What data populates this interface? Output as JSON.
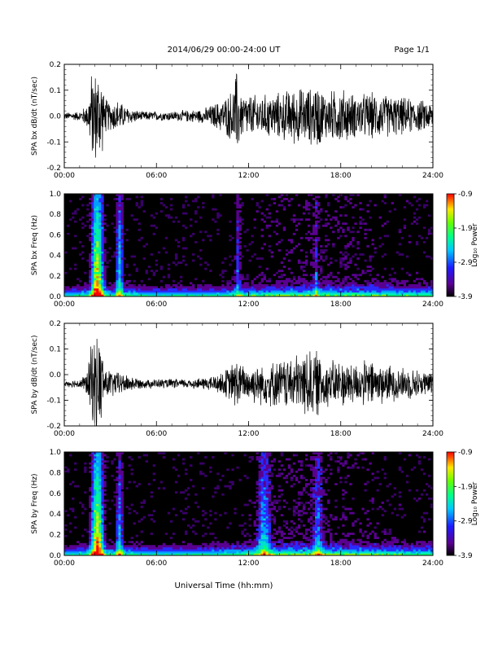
{
  "header": {
    "title": "2014/06/29  00:00-24:00 UT",
    "page": "Page 1/1"
  },
  "xlabel": "Universal Time (hh:mm)",
  "chart_data": [
    {
      "type": "line",
      "ylabel": "SPA bx dB/dt (nT/sec)",
      "xlim": [
        0,
        24
      ],
      "ylim": [
        -0.2,
        0.2
      ],
      "yticks": [
        "0.2",
        "0.1",
        "0.0",
        "-0.1",
        "-0.2"
      ],
      "xticks": [
        "00:00",
        "06:00",
        "12:00",
        "18:00",
        "24:00"
      ],
      "envelope": {
        "x_hours": [
          0,
          1,
          1.5,
          1.8,
          2.0,
          2.2,
          2.4,
          2.6,
          3.0,
          3.5,
          4.0,
          5.0,
          6.0,
          7.0,
          8.0,
          9.0,
          10.0,
          10.5,
          11.0,
          11.2,
          11.5,
          12.0,
          13.0,
          14.0,
          15.0,
          16.0,
          16.5,
          17.0,
          18.0,
          19.0,
          20.0,
          21.0,
          22.0,
          23.0,
          24.0
        ],
        "amplitude": [
          0.015,
          0.02,
          0.05,
          0.2,
          0.2,
          0.2,
          0.2,
          0.08,
          0.06,
          0.07,
          0.04,
          0.02,
          0.02,
          0.02,
          0.025,
          0.03,
          0.06,
          0.08,
          0.12,
          0.2,
          0.1,
          0.09,
          0.09,
          0.1,
          0.12,
          0.12,
          0.14,
          0.1,
          0.12,
          0.09,
          0.1,
          0.09,
          0.08,
          0.07,
          0.06
        ]
      }
    },
    {
      "type": "heatmap",
      "ylabel": "SPA bx Freq (Hz)",
      "xlim": [
        0,
        24
      ],
      "ylim": [
        0.0,
        1.0
      ],
      "yticks": [
        "1.0",
        "0.8",
        "0.6",
        "0.4",
        "0.2",
        "0.0"
      ],
      "xticks": [
        "00:00",
        "06:00",
        "12:00",
        "18:00",
        "24:00"
      ],
      "colorbar": {
        "label": "Log₁₀ Power",
        "ticks": [
          "-0.9",
          "-1.9",
          "-2.9",
          "-3.9"
        ],
        "range": [
          -3.9,
          -0.9
        ]
      },
      "hot_columns": [
        {
          "x_hours": 2.15,
          "width_hours": 0.35,
          "level": 1.0
        },
        {
          "x_hours": 3.6,
          "width_hours": 0.2,
          "level": 0.55
        },
        {
          "x_hours": 11.3,
          "width_hours": 0.15,
          "level": 0.3
        },
        {
          "x_hours": 16.4,
          "width_hours": 0.15,
          "level": 0.25
        }
      ]
    },
    {
      "type": "line",
      "ylabel": "SPA by dB/dt (nT/sec)",
      "xlim": [
        0,
        24
      ],
      "ylim": [
        -0.2,
        0.2
      ],
      "yticks": [
        "0.2",
        "0.1",
        "0.0",
        "-0.1",
        "-0.2"
      ],
      "xticks": [
        "00:00",
        "06:00",
        "12:00",
        "18:00",
        "24:00"
      ],
      "baseline": -0.035,
      "envelope": {
        "x_hours": [
          0,
          1,
          1.5,
          1.8,
          2.0,
          2.2,
          2.4,
          2.6,
          3.0,
          3.5,
          4.0,
          5.0,
          6.0,
          7.0,
          8.0,
          9.0,
          10.0,
          10.5,
          11.0,
          11.2,
          11.5,
          12.0,
          13.0,
          14.0,
          15.0,
          16.0,
          16.5,
          17.0,
          18.0,
          19.0,
          20.0,
          21.0,
          22.0,
          23.0,
          24.0
        ],
        "amplitude": [
          0.012,
          0.02,
          0.05,
          0.2,
          0.2,
          0.2,
          0.2,
          0.07,
          0.06,
          0.05,
          0.04,
          0.02,
          0.02,
          0.02,
          0.02,
          0.025,
          0.04,
          0.06,
          0.09,
          0.12,
          0.08,
          0.08,
          0.09,
          0.1,
          0.12,
          0.15,
          0.14,
          0.1,
          0.1,
          0.09,
          0.1,
          0.08,
          0.07,
          0.06,
          0.05
        ]
      }
    },
    {
      "type": "heatmap",
      "ylabel": "SPA by Freq (Hz)",
      "xlim": [
        0,
        24
      ],
      "ylim": [
        0.0,
        1.0
      ],
      "yticks": [
        "1.0",
        "0.8",
        "0.6",
        "0.4",
        "0.2",
        "0.0"
      ],
      "xticks": [
        "00:00",
        "06:00",
        "12:00",
        "18:00",
        "24:00"
      ],
      "colorbar": {
        "label": "Log₁₀ Power",
        "ticks": [
          "-0.9",
          "-1.9",
          "-2.9",
          "-3.9"
        ],
        "range": [
          -3.9,
          -0.9
        ]
      },
      "hot_columns": [
        {
          "x_hours": 2.15,
          "width_hours": 0.35,
          "level": 1.0
        },
        {
          "x_hours": 3.6,
          "width_hours": 0.2,
          "level": 0.45
        },
        {
          "x_hours": 13.0,
          "width_hours": 0.4,
          "level": 0.45
        },
        {
          "x_hours": 16.5,
          "width_hours": 0.3,
          "level": 0.35
        }
      ]
    }
  ]
}
